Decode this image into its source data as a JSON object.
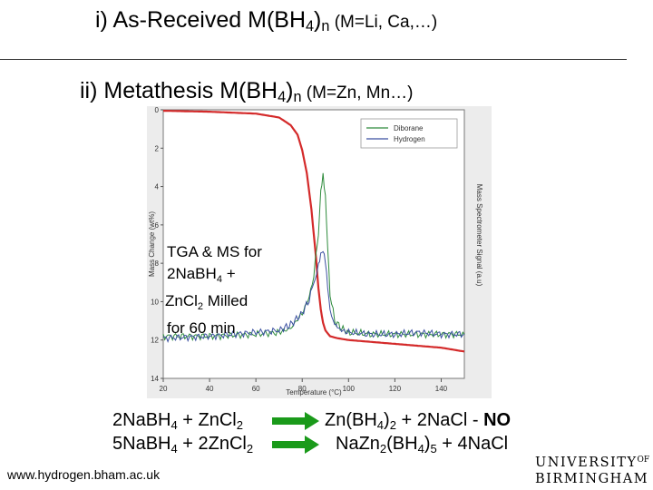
{
  "heading1": {
    "prefix": "i) As-Received M(BH",
    "sub": "4",
    "mid": ")",
    "sub2": "n",
    "note": " (M=Li, Ca,…)"
  },
  "heading2": {
    "prefix": "ii) Metathesis M(BH",
    "sub": "4",
    "mid": ")",
    "sub2": "n",
    "note": " (M=Zn, Mn…)"
  },
  "chart_data": {
    "type": "line",
    "xlabel": "Temperature (°C)",
    "ylabel_left": "Mass Change (wt%)",
    "ylabel_right": "Mass Spectrometer Signal (a.u)",
    "xlim": [
      20,
      150
    ],
    "ylim": [
      0,
      14
    ],
    "x_ticks": [
      "20",
      "40",
      "60",
      "80",
      "100",
      "120",
      "140"
    ],
    "y_ticks": [
      "0",
      "2",
      "4",
      "6",
      "8",
      "10",
      "12",
      "14"
    ],
    "legend": [
      "Diborane",
      "Hydrogen"
    ],
    "legend_position": "top-right",
    "series": [
      {
        "name": "Mass change (TGA)",
        "color": "#d42a2a",
        "x": [
          20,
          40,
          60,
          70,
          75,
          78,
          80,
          82,
          84,
          86,
          87,
          88,
          89,
          90,
          92,
          95,
          100,
          110,
          120,
          130,
          140,
          150
        ],
        "y": [
          0.05,
          0.1,
          0.2,
          0.4,
          0.8,
          1.3,
          2.1,
          3.3,
          5.2,
          7.8,
          9.3,
          10.4,
          11.1,
          11.5,
          11.8,
          11.9,
          12.0,
          12.1,
          12.2,
          12.3,
          12.4,
          12.6
        ]
      },
      {
        "name": "Diborane",
        "color": "#2e8b3c",
        "x": [
          20,
          40,
          60,
          70,
          75,
          80,
          83,
          85,
          87,
          88,
          89,
          90,
          91,
          92,
          94,
          97,
          100,
          110,
          120,
          130,
          140,
          150
        ],
        "y": [
          11.8,
          11.8,
          11.7,
          11.6,
          11.4,
          10.6,
          9.8,
          8.6,
          6.5,
          4.3,
          3.5,
          4.6,
          7.2,
          9.6,
          11.0,
          11.4,
          11.6,
          11.7,
          11.7,
          11.7,
          11.7,
          11.7
        ]
      },
      {
        "name": "Hydrogen",
        "color": "#3a4fa0",
        "x": [
          20,
          40,
          60,
          70,
          75,
          80,
          83,
          85,
          87,
          88,
          89,
          90,
          91,
          92,
          94,
          97,
          100,
          110,
          120,
          130,
          140,
          150
        ],
        "y": [
          11.9,
          11.8,
          11.6,
          11.5,
          11.2,
          10.6,
          9.9,
          9.0,
          8.2,
          7.6,
          7.4,
          7.9,
          9.2,
          10.4,
          11.2,
          11.5,
          11.6,
          11.7,
          11.7,
          11.6,
          11.7,
          11.7
        ]
      }
    ]
  },
  "overlay": {
    "line1": "TGA & MS for",
    "line2_pre": "2NaBH",
    "line2_sub": "4",
    "line2_post": " +",
    "line3_pre": "ZnCl",
    "line3_sub": "2",
    "line3_post": " Milled",
    "line4": "for 60 min"
  },
  "equations": {
    "eq1_lhs": {
      "a": "2NaBH",
      "a_sub": "4",
      "b": " + ZnCl",
      "b_sub": "2"
    },
    "eq1_rhs": {
      "a": "Zn(BH",
      "a_sub": "4",
      "b": ")",
      "b_sub": "2",
      "c": " + 2NaCl  - ",
      "bold": "NO"
    },
    "eq2_lhs": {
      "a": "5NaBH",
      "a_sub": "4",
      "b": " + 2ZnCl",
      "b_sub": "2"
    },
    "eq2_rhs": {
      "a": "NaZn",
      "a_sub": "2",
      "b": "(BH",
      "b_sub": "4",
      "c": ")",
      "c_sub": "5",
      "d": " + 4NaCl"
    }
  },
  "footer_url": "www.hydrogen.bham.ac.uk",
  "logo": {
    "line1": "UNIVERSITY",
    "of": "OF",
    "line2": "BIRMINGHAM"
  },
  "colors": {
    "arrow": "#1a9a1a",
    "plot_bg": "#ffffff",
    "frame_bg": "#ececec"
  }
}
